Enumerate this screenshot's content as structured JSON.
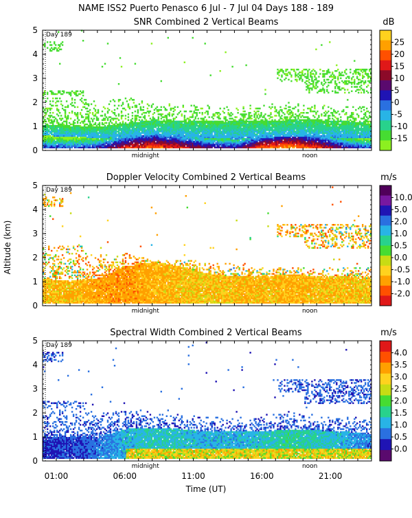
{
  "header": {
    "title": "NAME ISS2 Puerto Penasco    6 Jul -  7 Jul 04 Days 188 - 189"
  },
  "shared": {
    "ylabel": "Altitude (km)",
    "xlabel": "Time (UT)",
    "day_label": "Day 189",
    "midnight_label": "midnight",
    "noon_label": "noon",
    "x_tick_labels": [
      "01:00",
      "06:00",
      "11:00",
      "16:00",
      "21:00"
    ],
    "y_tick_labels": [
      "0",
      "1",
      "2",
      "3",
      "4",
      "5"
    ]
  },
  "chart_data": [
    {
      "type": "heatmap",
      "title": "SNR Combined 2 Vertical Beams",
      "units": "dB",
      "xlabel": "Time (UT)",
      "ylabel": "Altitude (km)",
      "xlim_hours_ut": [
        0,
        24
      ],
      "ylim_km": [
        0,
        5
      ],
      "colorbar_ticks": [
        "25",
        "20",
        "15",
        "10",
        "5",
        "0",
        "-5",
        "-10",
        "-15"
      ],
      "colorbar_colors": [
        "#ffd21e",
        "#ffa000",
        "#ff5000",
        "#e01818",
        "#8c0a28",
        "#5a0a6e",
        "#1f14b4",
        "#2a70e0",
        "#28b4e6",
        "#28d28c",
        "#46dc32",
        "#8cf020"
      ],
      "profile": {
        "hours": [
          0,
          2,
          4,
          6,
          8,
          10,
          12,
          14,
          16,
          18,
          20,
          22,
          24
        ],
        "echo_top_km": [
          2.3,
          2.3,
          2.0,
          2.2,
          2.0,
          1.9,
          1.8,
          1.8,
          1.9,
          2.0,
          1.9,
          1.8,
          1.8
        ],
        "boundary_layer_top_km": [
          1.05,
          1.0,
          0.95,
          1.1,
          1.25,
          1.2,
          1.2,
          1.2,
          1.2,
          1.25,
          1.25,
          1.2,
          1.1
        ],
        "strong_layer_top_km": [
          0.6,
          0.55,
          0.5,
          0.55,
          0.6,
          0.55,
          0.5,
          0.45,
          0.5,
          0.55,
          0.55,
          0.5,
          0.5
        ],
        "peak_value_db": [
          5,
          5,
          8,
          18,
          22,
          18,
          12,
          10,
          22,
          26,
          20,
          10,
          5
        ]
      }
    },
    {
      "type": "heatmap",
      "title": "Doppler Velocity Combined 2 Vertical Beams",
      "units": "m/s",
      "xlabel": "Time (UT)",
      "ylabel": "Altitude (km)",
      "xlim_hours_ut": [
        0,
        24
      ],
      "ylim_km": [
        0,
        5
      ],
      "colorbar_ticks": [
        "10.0",
        "5.0",
        "2.0",
        "1.0",
        "0.5",
        "0.0",
        "-0.5",
        "-1.0",
        "-2.0"
      ],
      "colorbar_colors": [
        "#50005a",
        "#7818a0",
        "#1f14b4",
        "#2a70e0",
        "#28b4e6",
        "#28d28c",
        "#46dc32",
        "#c8dc14",
        "#ffd21e",
        "#ffa000",
        "#ff5000",
        "#e01818"
      ],
      "profile": {
        "hours": [
          0,
          2,
          4,
          6,
          8,
          10,
          12,
          14,
          16,
          18,
          20,
          22,
          24
        ],
        "echo_top_km": [
          2.3,
          2.3,
          2.1,
          2.2,
          1.9,
          1.9,
          1.8,
          1.7,
          1.6,
          1.6,
          1.5,
          1.6,
          1.5
        ],
        "boundary_layer_top_km": [
          1.1,
          1.0,
          1.1,
          1.6,
          1.8,
          1.6,
          1.3,
          1.2,
          1.2,
          1.3,
          1.2,
          1.2,
          1.1
        ],
        "dominant_value_m_s": [
          -0.5,
          -0.5,
          -0.7,
          -0.8,
          -0.6,
          -0.5,
          -0.4,
          -0.5,
          -0.5,
          -0.6,
          -0.5,
          -0.5,
          -0.4
        ]
      }
    },
    {
      "type": "heatmap",
      "title": "Spectral Width Combined 2 Vertical Beams",
      "units": "m/s",
      "xlabel": "Time (UT)",
      "ylabel": "Altitude (km)",
      "xlim_hours_ut": [
        0,
        24
      ],
      "ylim_km": [
        0,
        5
      ],
      "colorbar_ticks": [
        "4.0",
        "3.5",
        "3.0",
        "2.5",
        "2.0",
        "1.5",
        "1.0",
        "0.5",
        "0.0"
      ],
      "colorbar_colors": [
        "#e01818",
        "#ff5000",
        "#ffa000",
        "#ffd21e",
        "#c8dc14",
        "#46dc32",
        "#28d28c",
        "#28b4e6",
        "#2a70e0",
        "#1f14b4",
        "#5a0a6e"
      ],
      "profile": {
        "hours": [
          0,
          2,
          4,
          6,
          8,
          10,
          12,
          14,
          16,
          18,
          20,
          22,
          24
        ],
        "echo_top_km": [
          2.3,
          2.3,
          2.0,
          2.2,
          2.0,
          1.9,
          1.8,
          1.8,
          1.9,
          2.0,
          1.9,
          1.8,
          1.8
        ],
        "boundary_layer_top_km": [
          1.0,
          0.95,
          1.0,
          1.3,
          1.35,
          1.3,
          1.2,
          1.2,
          1.2,
          1.3,
          1.25,
          1.2,
          1.1
        ],
        "dominant_value_m_s": [
          0.5,
          0.6,
          0.8,
          1.2,
          1.4,
          1.3,
          1.2,
          1.2,
          1.3,
          1.6,
          1.4,
          1.2,
          0.8
        ]
      }
    }
  ]
}
